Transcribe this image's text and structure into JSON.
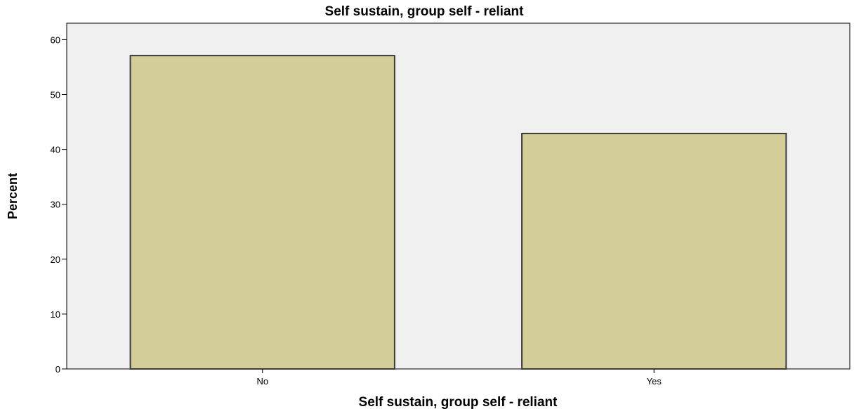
{
  "chart_data": {
    "type": "bar",
    "title": "Self sustain, group self - reliant",
    "xlabel": "Self sustain, group self - reliant",
    "ylabel": "Percent",
    "categories": [
      "No",
      "Yes"
    ],
    "values": [
      57.1,
      42.9
    ],
    "ylim": [
      0,
      63
    ],
    "yticks": [
      0,
      10,
      20,
      30,
      40,
      50,
      60
    ],
    "grid": false,
    "legend": "none",
    "colors": {
      "bar_fill": "#d3cd98",
      "bar_stroke": "#3c3c3c",
      "plot_background": "#f0f0f0",
      "axis": "#000000"
    }
  }
}
